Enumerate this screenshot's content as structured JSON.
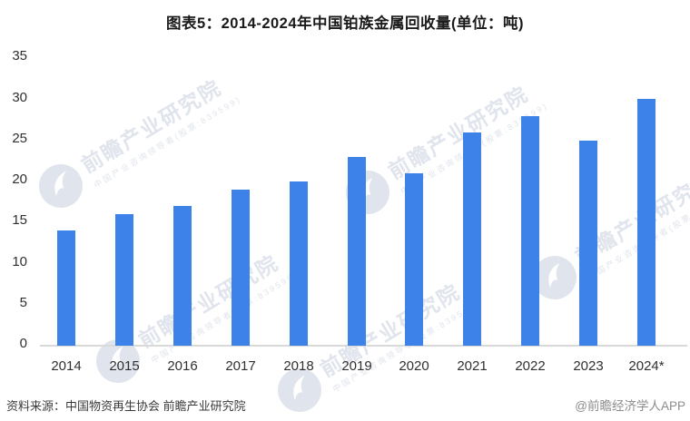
{
  "title": "图表5：2014-2024年中国铂族金属回收量(单位：吨)",
  "chart_data": {
    "type": "bar",
    "title": "图表5：2014-2024年中国铂族金属回收量(单位：吨)",
    "unit": "吨",
    "categories": [
      "2014",
      "2015",
      "2016",
      "2017",
      "2018",
      "2019",
      "2020",
      "2021",
      "2022",
      "2023",
      "2024*"
    ],
    "values": [
      14,
      16,
      17,
      19,
      20,
      23,
      21,
      26,
      28,
      25,
      30
    ],
    "xlabel": "",
    "ylabel": "",
    "ylim": [
      0,
      35
    ],
    "yticks": [
      0,
      5,
      10,
      15,
      20,
      25,
      30,
      35
    ],
    "grid": false,
    "legend_position": "none",
    "bar_color": "#3D82E8"
  },
  "watermark": {
    "main_text": "前瞻产业研究院",
    "sub_text": "中国产业咨询领导者(股票:839599)"
  },
  "footer": {
    "source": "资料来源：中国物资再生协会 前瞻产业研究院",
    "brand": "@前瞻经济学人APP"
  },
  "colors": {
    "bar": "#3D82E8",
    "axis_line": "#D9D9D9",
    "tick_text": "#2F2F2F",
    "title_text": "#1A1A1A",
    "source_text": "#3B3B3B",
    "brand_text": "#8C8C8C",
    "watermark": "#E0E4EC"
  }
}
